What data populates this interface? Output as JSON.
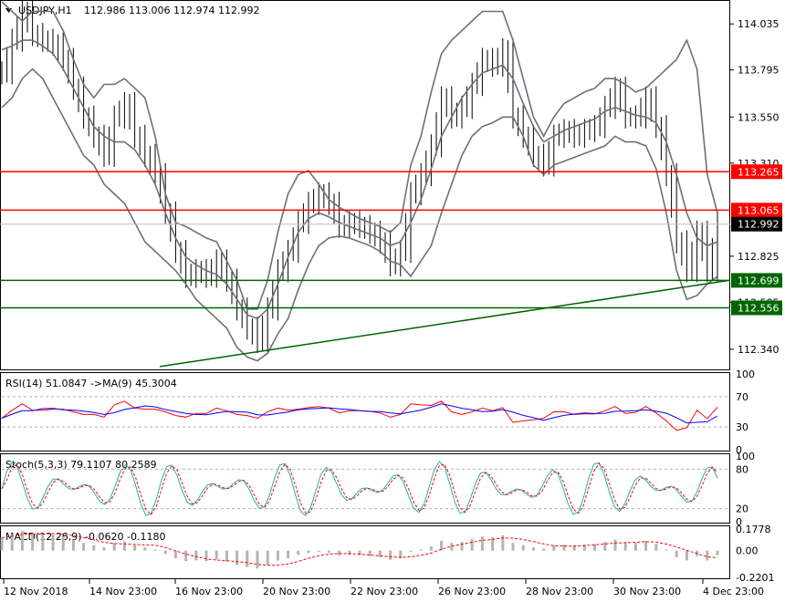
{
  "header": {
    "symbol": "USDJPY,H1",
    "ohlc": "112.986 113.006 112.974 112.992"
  },
  "colors": {
    "red_level": "#ff0000",
    "green_level": "#006400",
    "price_line": "#000000",
    "bollinger": "#6b7079",
    "rsi_line": "#ff0000",
    "rsi_ma": "#0000ff",
    "stoch_main": "#20b2aa",
    "stoch_signal": "#ff0000",
    "macd_hist": "#b4b4b4",
    "macd_signal": "#ff0000",
    "grid_dotted": "#b0b0b0"
  },
  "price_axis": {
    "ticks": [
      "114.035",
      "113.795",
      "113.550",
      "113.310",
      "112.825",
      "112.585",
      "112.340"
    ]
  },
  "levels": {
    "red": [
      "113.265",
      "113.065"
    ],
    "green": [
      "112.699",
      "112.556"
    ],
    "current": "112.992"
  },
  "indicators": {
    "rsi": {
      "header": "RSI(14) 51.0847   ->MA(9) 45.3004",
      "ticks": [
        "100",
        "70",
        "30",
        "0"
      ]
    },
    "stoch": {
      "header": "Stoch(5,3,3) 79.1107 80.2589",
      "ticks": [
        "100",
        "80",
        "20",
        "0"
      ]
    },
    "macd": {
      "header": "MACD(12,26,9) -0.0620 -0.1180",
      "ticks": [
        "0.1778",
        "0.00",
        "-0.2201"
      ]
    }
  },
  "time_axis": {
    "labels": [
      "12 Nov 2018",
      "14 Nov 23:00",
      "16 Nov 23:00",
      "20 Nov 23:00",
      "22 Nov 23:00",
      "26 Nov 23:00",
      "28 Nov 23:00",
      "30 Nov 23:00",
      "4 Dec 23:00"
    ]
  },
  "chart_data": {
    "type": "line",
    "title": "USDJPY,H1",
    "ylim": [
      112.24,
      114.15
    ],
    "close_path": [
      113.78,
      113.95,
      114.1,
      113.98,
      113.95,
      113.93,
      113.85,
      113.7,
      113.55,
      113.45,
      113.35,
      113.55,
      113.62,
      113.45,
      113.35,
      113.25,
      113.05,
      112.85,
      112.72,
      112.75,
      112.72,
      112.8,
      112.7,
      112.55,
      112.45,
      112.38,
      112.55,
      112.75,
      112.85,
      113.0,
      113.1,
      113.15,
      113.1,
      112.98,
      113.0,
      112.98,
      112.95,
      112.9,
      112.78,
      112.85,
      113.15,
      113.25,
      113.4,
      113.65,
      113.55,
      113.6,
      113.72,
      113.85,
      113.82,
      113.9,
      113.55,
      113.45,
      113.35,
      113.3,
      113.45,
      113.48,
      113.45,
      113.48,
      113.5,
      113.6,
      113.7,
      113.55,
      113.55,
      113.65,
      113.5,
      113.25,
      112.9,
      112.75,
      112.95,
      112.75,
      112.99
    ],
    "bb_upper": [
      114.15,
      114.1,
      114.05,
      114.1,
      114.1,
      114.1,
      114.0,
      113.85,
      113.72,
      113.65,
      113.72,
      113.72,
      113.75,
      113.7,
      113.65,
      113.45,
      113.15,
      113.0,
      112.98,
      112.95,
      112.92,
      112.9,
      112.8,
      112.7,
      112.55,
      112.55,
      112.7,
      112.95,
      113.15,
      113.25,
      113.27,
      113.2,
      113.12,
      113.08,
      113.05,
      113.02,
      113.0,
      112.98,
      112.95,
      113.0,
      113.3,
      113.45,
      113.68,
      113.88,
      113.95,
      114.0,
      114.05,
      114.1,
      114.1,
      114.1,
      113.95,
      113.75,
      113.55,
      113.45,
      113.55,
      113.62,
      113.65,
      113.68,
      113.7,
      113.75,
      113.75,
      113.72,
      113.68,
      113.7,
      113.75,
      113.8,
      113.85,
      113.95,
      113.8,
      113.25,
      113.05
    ],
    "bb_middle": [
      113.9,
      113.92,
      113.95,
      113.95,
      113.92,
      113.88,
      113.8,
      113.7,
      113.6,
      113.5,
      113.45,
      113.42,
      113.42,
      113.38,
      113.3,
      113.2,
      113.05,
      112.92,
      112.82,
      112.78,
      112.75,
      112.73,
      112.68,
      112.6,
      112.52,
      112.5,
      112.55,
      112.68,
      112.82,
      112.95,
      113.02,
      113.05,
      113.03,
      113.0,
      112.98,
      112.96,
      112.94,
      112.92,
      112.88,
      112.9,
      113.0,
      113.12,
      113.28,
      113.45,
      113.55,
      113.65,
      113.72,
      113.78,
      113.8,
      113.82,
      113.75,
      113.62,
      113.5,
      113.42,
      113.45,
      113.48,
      113.5,
      113.52,
      113.54,
      113.58,
      113.6,
      113.58,
      113.56,
      113.55,
      113.52,
      113.42,
      113.25,
      113.05,
      112.92,
      112.88,
      112.9
    ],
    "bb_lower": [
      113.6,
      113.65,
      113.75,
      113.8,
      113.75,
      113.65,
      113.55,
      113.45,
      113.35,
      113.3,
      113.2,
      113.15,
      113.1,
      113.0,
      112.9,
      112.85,
      112.8,
      112.75,
      112.68,
      112.6,
      112.55,
      112.5,
      112.45,
      112.35,
      112.3,
      112.28,
      112.32,
      112.42,
      112.5,
      112.65,
      112.78,
      112.88,
      112.92,
      112.93,
      112.92,
      112.9,
      112.88,
      112.85,
      112.8,
      112.78,
      112.72,
      112.8,
      112.88,
      113.05,
      113.2,
      113.35,
      113.45,
      113.5,
      113.52,
      113.55,
      113.55,
      113.45,
      113.3,
      113.25,
      113.3,
      113.32,
      113.34,
      113.36,
      113.38,
      113.4,
      113.45,
      113.42,
      113.42,
      113.4,
      113.28,
      113.05,
      112.75,
      112.6,
      112.62,
      112.68,
      112.72
    ],
    "rsi_range": [
      0,
      100
    ],
    "stoch_range": [
      0,
      100
    ],
    "macd_range": [
      -0.2201,
      0.1778
    ]
  }
}
